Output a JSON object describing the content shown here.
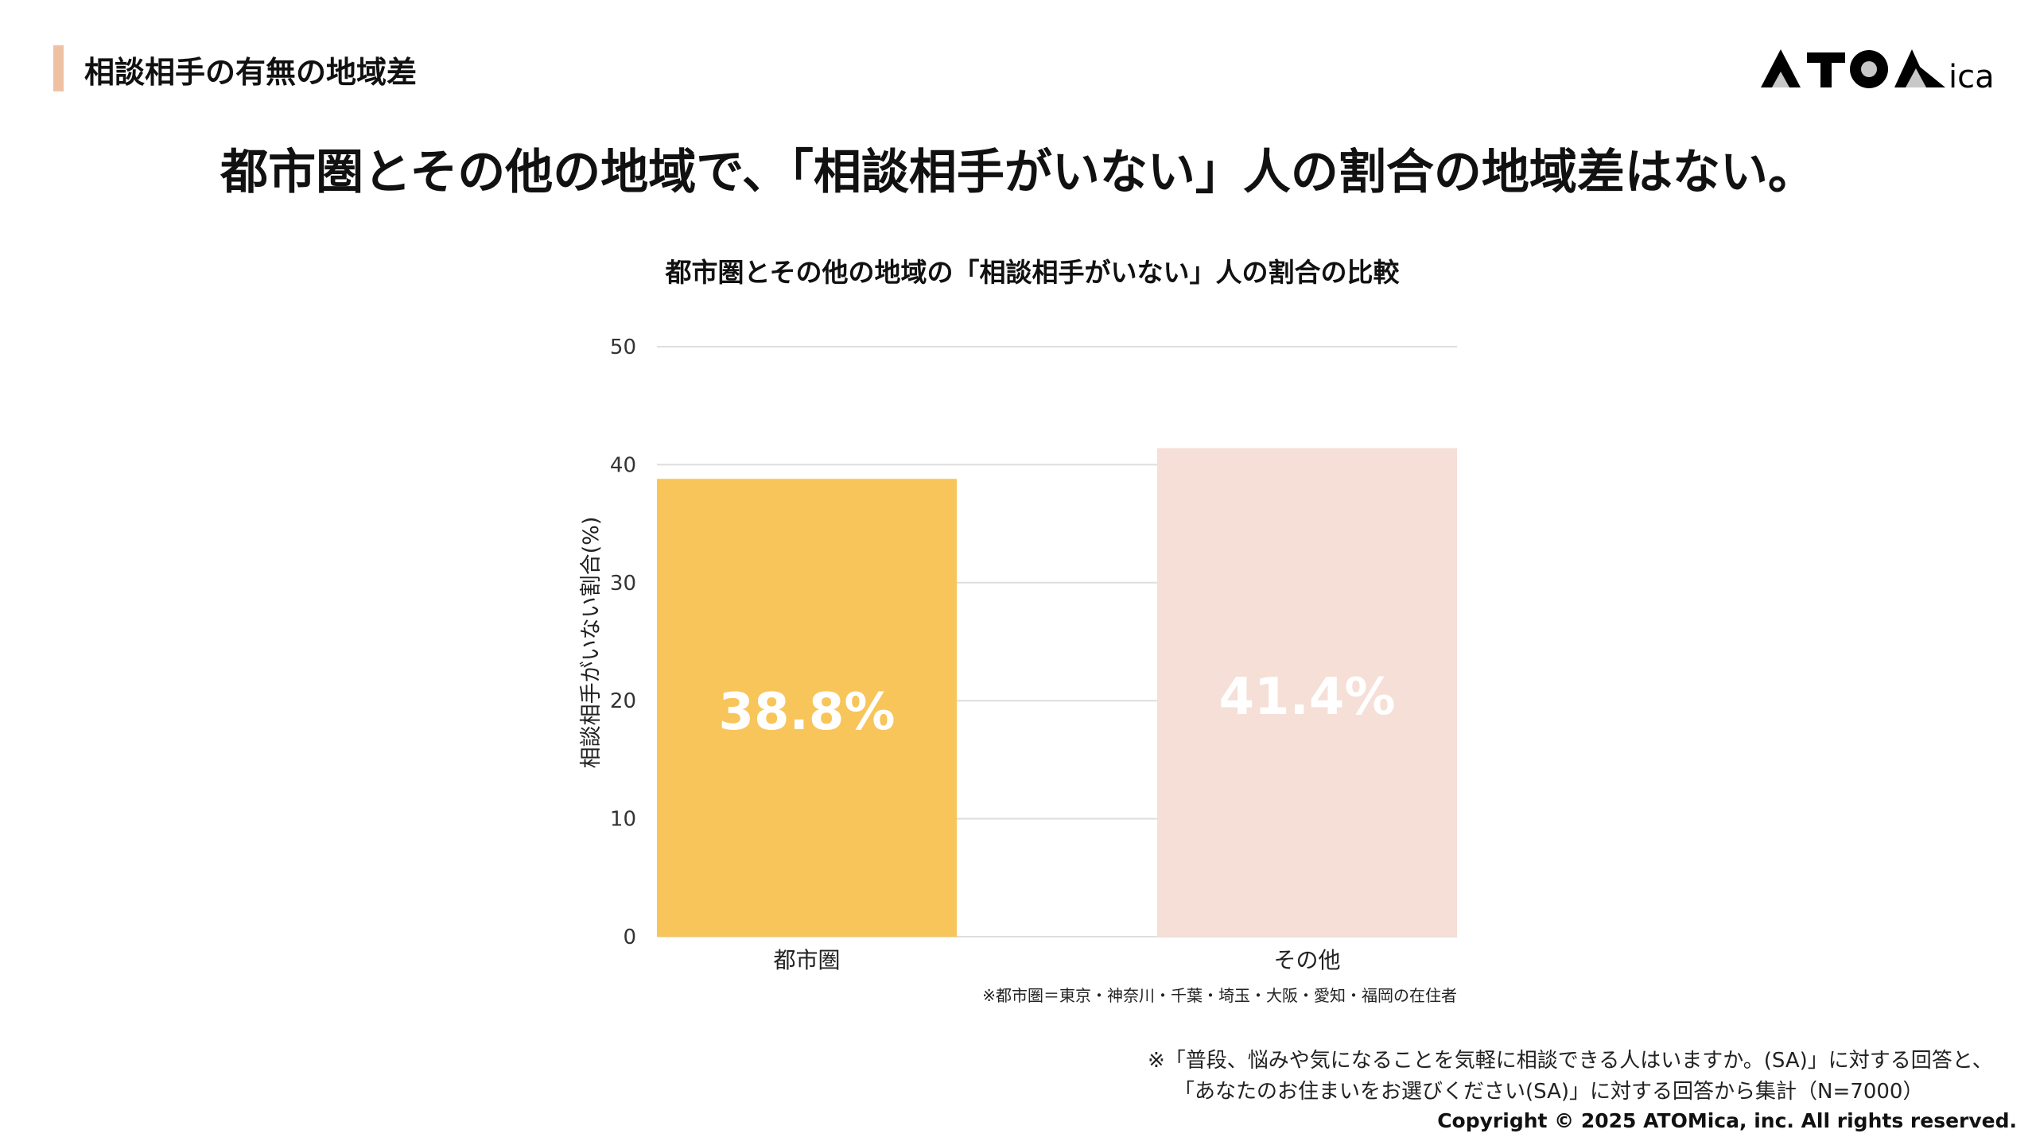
{
  "header": {
    "section_title": "相談相手の有無の地域差",
    "logo_text": "ATOMica",
    "accent_color": "#efc1a3"
  },
  "headline": "都市圏とその他の地域で、「相談相手がいない」人の割合の地域差はない。",
  "chart_data": {
    "type": "bar",
    "title": "都市圏とその他の地域の「相談相手がいない」人の割合の比較",
    "categories": [
      "都市圏",
      "その他"
    ],
    "values": [
      38.8,
      41.4
    ],
    "data_labels": [
      "38.8%",
      "41.4%"
    ],
    "colors": [
      "#f8c55a",
      "#f5dfd6"
    ],
    "xlabel": "",
    "ylabel": "相談相手がいない割合(%)",
    "ylim": [
      0,
      50
    ],
    "yticks": [
      0,
      10,
      20,
      30,
      40,
      50
    ],
    "grid": true,
    "legend": "none"
  },
  "chart_note": "※都市圏＝東京・神奈川・千葉・埼玉・大阪・愛知・福岡の在住者",
  "footnotes": [
    "※「普段、悩みや気になることを気軽に相談できる人はいますか。(SA)」に対する回答と、",
    "「あなたのお住まいをお選びください(SA)」に対する回答から集計（N=7000）"
  ],
  "copyright": "Copyright © 2025 ATOMica, inc. All rights reserved."
}
